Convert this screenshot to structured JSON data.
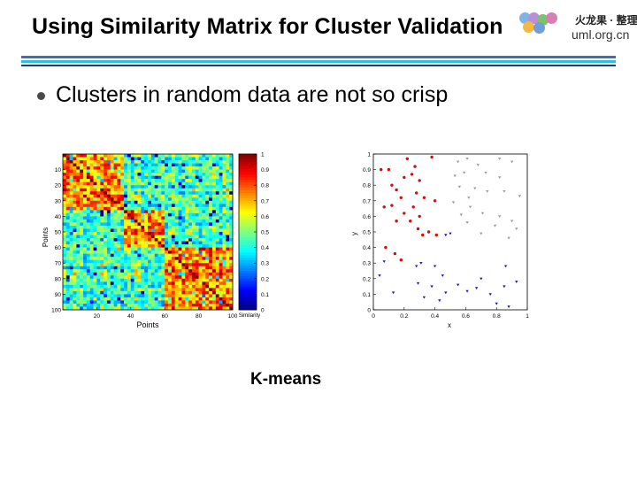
{
  "slide": {
    "title": "Using Similarity Matrix for Cluster Validation",
    "bullet": "Clusters in random data are not so crisp",
    "caption": "K-means"
  },
  "logo": {
    "text_cn": "火龙果 · 整理",
    "url": "uml.org.cn",
    "circle_colors": [
      "#7fb2e5",
      "#b98fd6",
      "#7cc36b",
      "#f4b942",
      "#6e9fd8",
      "#d87fb9"
    ]
  },
  "colors": {
    "rule_blue": "#3f6fb6",
    "rule_cyan": "#2ec0e0",
    "red_points": "#cc1111",
    "blue_points": "#1a1aaa",
    "gray_points": "#9a9a9a"
  },
  "heatmap": {
    "ylabel": "Points",
    "xlabel": "Points",
    "colorbar_label": "Similarity",
    "y_ticks": [
      "10",
      "20",
      "30",
      "40",
      "50",
      "60",
      "70",
      "80",
      "90",
      "100"
    ],
    "x_ticks": [
      "20",
      "40",
      "60",
      "80",
      "100"
    ],
    "colorbar_ticks": [
      "1",
      "0.9",
      "0.8",
      "0.7",
      "0.6",
      "0.5",
      "0.4",
      "0.3",
      "0.2",
      "0.1",
      "0"
    ],
    "cluster_boundaries": [
      0,
      37,
      61,
      100
    ]
  },
  "chart_data": {
    "type": "scatter",
    "xlabel": "x",
    "ylabel": "y",
    "xlim": [
      0,
      1
    ],
    "ylim": [
      0,
      1
    ],
    "x_ticks": [
      "0",
      "0.2",
      "0.4",
      "0.6",
      "0.8",
      "1"
    ],
    "y_ticks": [
      "0",
      "0.1",
      "0.2",
      "0.3",
      "0.4",
      "0.5",
      "0.6",
      "0.7",
      "0.8",
      "0.9",
      "1"
    ],
    "series": [
      {
        "color": "#cc1111",
        "marker": "dot",
        "points": [
          [
            0.05,
            0.9
          ],
          [
            0.1,
            0.9
          ],
          [
            0.12,
            0.8
          ],
          [
            0.22,
            0.97
          ],
          [
            0.27,
            0.92
          ],
          [
            0.38,
            0.98
          ],
          [
            0.2,
            0.85
          ],
          [
            0.25,
            0.87
          ],
          [
            0.3,
            0.83
          ],
          [
            0.15,
            0.77
          ],
          [
            0.18,
            0.72
          ],
          [
            0.28,
            0.75
          ],
          [
            0.33,
            0.72
          ],
          [
            0.4,
            0.7
          ],
          [
            0.07,
            0.66
          ],
          [
            0.12,
            0.67
          ],
          [
            0.2,
            0.62
          ],
          [
            0.26,
            0.66
          ],
          [
            0.3,
            0.6
          ],
          [
            0.24,
            0.57
          ],
          [
            0.15,
            0.57
          ],
          [
            0.29,
            0.52
          ],
          [
            0.36,
            0.5
          ],
          [
            0.32,
            0.48
          ],
          [
            0.41,
            0.48
          ],
          [
            0.08,
            0.4
          ],
          [
            0.14,
            0.36
          ],
          [
            0.18,
            0.32
          ]
        ]
      },
      {
        "color": "#1a1aaa",
        "marker": "triangle",
        "points": [
          [
            0.47,
            0.48
          ],
          [
            0.5,
            0.49
          ],
          [
            0.07,
            0.31
          ],
          [
            0.04,
            0.22
          ],
          [
            0.13,
            0.11
          ],
          [
            0.28,
            0.28
          ],
          [
            0.31,
            0.3
          ],
          [
            0.4,
            0.28
          ],
          [
            0.45,
            0.22
          ],
          [
            0.29,
            0.17
          ],
          [
            0.38,
            0.15
          ],
          [
            0.47,
            0.11
          ],
          [
            0.33,
            0.08
          ],
          [
            0.43,
            0.06
          ],
          [
            0.55,
            0.16
          ],
          [
            0.61,
            0.12
          ],
          [
            0.7,
            0.2
          ],
          [
            0.67,
            0.14
          ],
          [
            0.86,
            0.28
          ],
          [
            0.85,
            0.15
          ],
          [
            0.93,
            0.18
          ],
          [
            0.8,
            0.04
          ],
          [
            0.88,
            0.02
          ],
          [
            0.76,
            0.1
          ]
        ]
      },
      {
        "color": "#9a9a9a",
        "marker": "triangle",
        "points": [
          [
            0.55,
            0.95
          ],
          [
            0.61,
            0.97
          ],
          [
            0.68,
            0.93
          ],
          [
            0.82,
            0.97
          ],
          [
            0.9,
            0.95
          ],
          [
            0.53,
            0.86
          ],
          [
            0.59,
            0.88
          ],
          [
            0.73,
            0.88
          ],
          [
            0.82,
            0.85
          ],
          [
            0.56,
            0.79
          ],
          [
            0.62,
            0.72
          ],
          [
            0.66,
            0.78
          ],
          [
            0.74,
            0.76
          ],
          [
            0.85,
            0.76
          ],
          [
            0.95,
            0.73
          ],
          [
            0.52,
            0.69
          ],
          [
            0.63,
            0.66
          ],
          [
            0.71,
            0.62
          ],
          [
            0.82,
            0.6
          ],
          [
            0.9,
            0.57
          ],
          [
            0.57,
            0.61
          ],
          [
            0.79,
            0.54
          ],
          [
            0.93,
            0.52
          ],
          [
            0.61,
            0.56
          ],
          [
            0.7,
            0.49
          ],
          [
            0.88,
            0.46
          ]
        ]
      }
    ]
  }
}
